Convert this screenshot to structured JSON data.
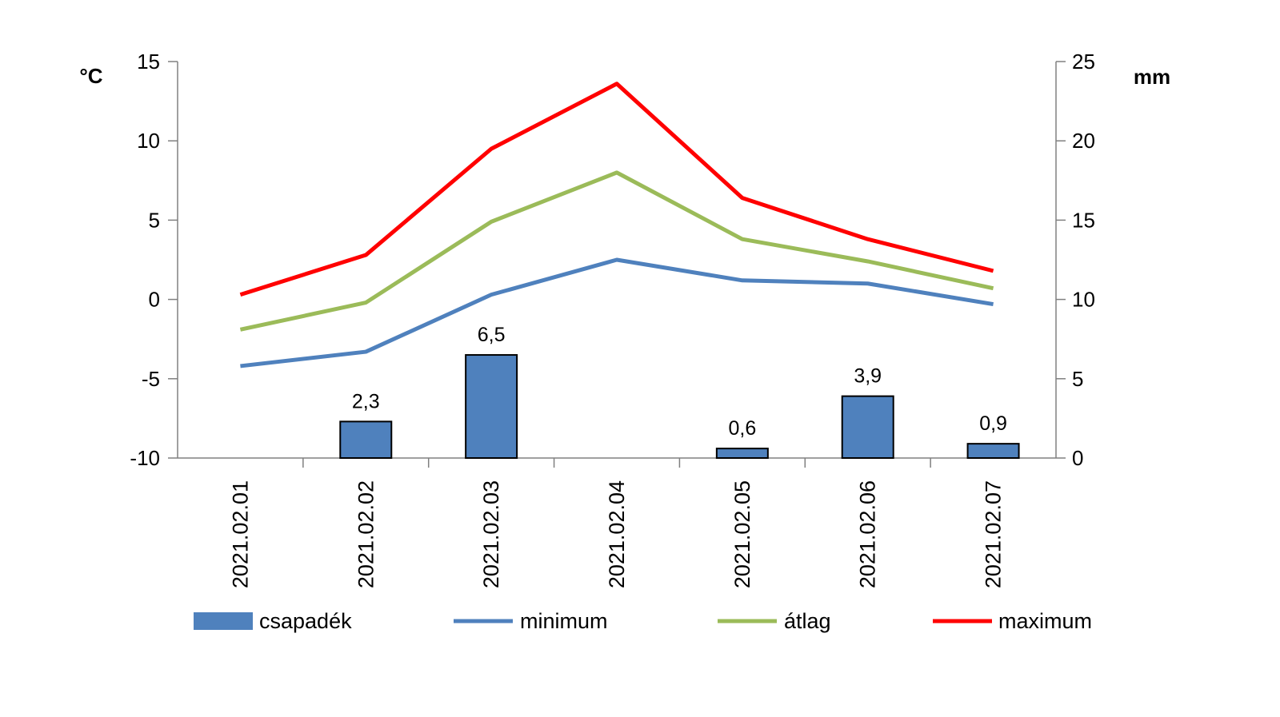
{
  "chart_data": {
    "type": "bar+line",
    "categories": [
      "2021.02.01",
      "2021.02.02",
      "2021.02.03",
      "2021.02.04",
      "2021.02.05",
      "2021.02.06",
      "2021.02.07"
    ],
    "y_left": {
      "unit": "°C",
      "ylim": [
        -10,
        15
      ],
      "ticks": [
        -10,
        -5,
        0,
        5,
        10,
        15
      ],
      "tick_labels": [
        "-10",
        "-5",
        "0",
        "5",
        "10",
        "15"
      ]
    },
    "y_right": {
      "unit": "mm",
      "ylim": [
        0,
        25
      ],
      "ticks": [
        0,
        5,
        10,
        15,
        20,
        25
      ],
      "tick_labels": [
        "0",
        "5",
        "10",
        "15",
        "20",
        "25"
      ]
    },
    "bars": {
      "name": "csapadék",
      "axis": "right",
      "color": "#4f81bd",
      "values": [
        0,
        2.3,
        6.5,
        0,
        0.6,
        3.9,
        0.9
      ],
      "labels": [
        "",
        "2,3",
        "6,5",
        "",
        "0,6",
        "3,9",
        "0,9"
      ]
    },
    "series": [
      {
        "name": "minimum",
        "axis": "left",
        "color": "#4f81bd",
        "values": [
          -4.2,
          -3.3,
          0.3,
          2.5,
          1.2,
          1.0,
          -0.3
        ]
      },
      {
        "name": "átlag",
        "axis": "left",
        "color": "#9bbb59",
        "values": [
          -1.9,
          -0.2,
          4.9,
          8.0,
          3.8,
          2.4,
          0.7
        ]
      },
      {
        "name": "maximum",
        "axis": "left",
        "color": "#ff0000",
        "values": [
          0.3,
          2.8,
          9.5,
          13.6,
          6.4,
          3.8,
          1.8
        ]
      }
    ],
    "legend_position": "bottom",
    "grid": false
  }
}
